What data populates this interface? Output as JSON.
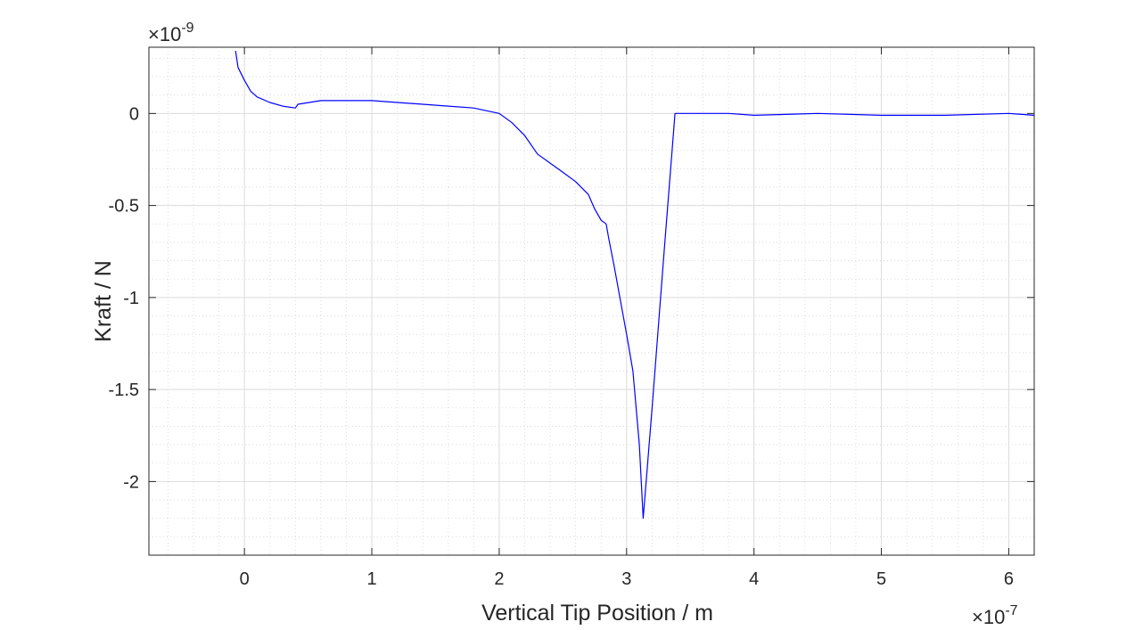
{
  "chart_data": {
    "type": "line",
    "xlabel": "Vertical Tip Position / m",
    "ylabel": "Kraft / N",
    "x_exponent_label": "×10",
    "x_exponent_power": "-7",
    "y_exponent_label": "×10",
    "y_exponent_power": "-9",
    "xlim": [
      -0.75,
      6.2
    ],
    "ylim": [
      -2.4,
      0.36
    ],
    "xticks": [
      0,
      1,
      2,
      3,
      4,
      5,
      6
    ],
    "xtick_labels": [
      "0",
      "1",
      "2",
      "3",
      "4",
      "5",
      "6"
    ],
    "yticks": [
      0,
      -0.5,
      -1,
      -1.5,
      -2
    ],
    "ytick_labels": [
      "0",
      "-0.5",
      "-1",
      "-1.5",
      "-2"
    ],
    "grid": true,
    "minor_grid": true,
    "series_color": "#0000ff",
    "series": [
      {
        "x": [
          -0.07,
          -0.05,
          0.0,
          0.05,
          0.1,
          0.2,
          0.3,
          0.4,
          0.42,
          0.6,
          0.8,
          1.0,
          1.2,
          1.4,
          1.6,
          1.8,
          2.0,
          2.1,
          2.2,
          2.3,
          2.4,
          2.5,
          2.6,
          2.7,
          2.75,
          2.8,
          2.84,
          2.86,
          2.9,
          3.0,
          3.05,
          3.1,
          3.13,
          3.2,
          3.3,
          3.38,
          3.5,
          3.8,
          4.0,
          4.5,
          5.0,
          5.5,
          6.0,
          6.2
        ],
        "y": [
          0.34,
          0.25,
          0.18,
          0.12,
          0.09,
          0.06,
          0.04,
          0.03,
          0.05,
          0.07,
          0.07,
          0.07,
          0.06,
          0.05,
          0.04,
          0.03,
          0.0,
          -0.05,
          -0.12,
          -0.22,
          -0.27,
          -0.32,
          -0.37,
          -0.44,
          -0.52,
          -0.58,
          -0.6,
          -0.68,
          -0.82,
          -1.2,
          -1.4,
          -1.8,
          -2.2,
          -1.6,
          -0.7,
          0.0,
          0.0,
          0.0,
          -0.01,
          0.0,
          -0.01,
          -0.01,
          0.0,
          -0.01
        ]
      }
    ]
  }
}
